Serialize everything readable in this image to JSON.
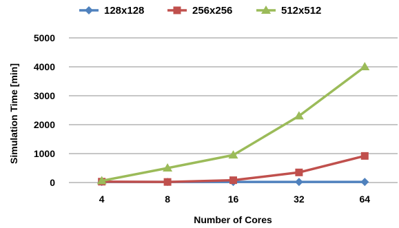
{
  "chart_data": {
    "type": "line",
    "x": [
      "4",
      "8",
      "16",
      "32",
      "64"
    ],
    "series": [
      {
        "name": "128x128",
        "values": [
          20,
          20,
          20,
          20,
          20
        ],
        "color": "#4f81bd",
        "marker": "diamond"
      },
      {
        "name": "256x256",
        "values": [
          30,
          20,
          80,
          350,
          920
        ],
        "color": "#c0504d",
        "marker": "square"
      },
      {
        "name": "512x512",
        "values": [
          60,
          500,
          950,
          2300,
          4000
        ],
        "color": "#9bbb59",
        "marker": "triangle"
      }
    ],
    "xlabel": "Number of Cores",
    "ylabel": "Simulation Time [min]",
    "ylim": [
      0,
      5000
    ],
    "yticks": [
      0,
      1000,
      2000,
      3000,
      4000,
      5000
    ],
    "grid": true,
    "legend_position": "top"
  }
}
